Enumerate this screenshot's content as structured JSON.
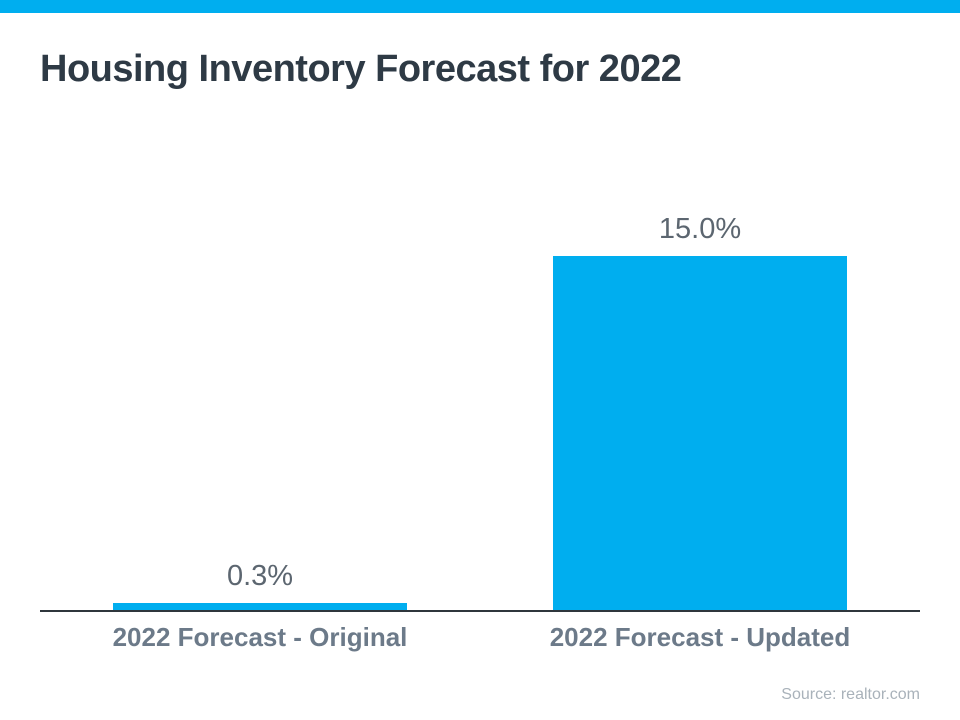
{
  "page": {
    "title": "Housing Inventory Forecast for 2022",
    "source": "Source: realtor.com"
  },
  "theme": {
    "accent": "#00AEEF",
    "title_color": "#2E3A45",
    "value_label_color": "#5C6670",
    "category_label_color": "#6C7A89",
    "axis_color": "#2F363C",
    "source_color": "#A9B2BA",
    "background": "#FFFFFF"
  },
  "chart_data": {
    "type": "bar",
    "title": "Housing Inventory Forecast for 2022",
    "categories": [
      "2022 Forecast - Original",
      "2022 Forecast - Updated"
    ],
    "values": [
      0.3,
      15.0
    ],
    "value_labels": [
      "0.3%",
      "15.0%"
    ],
    "unit": "%",
    "xlabel": "",
    "ylabel": "",
    "ylim": [
      0,
      15
    ],
    "grid": false,
    "legend": false,
    "bar_color": "#00AEEF",
    "source": "Source: realtor.com"
  }
}
